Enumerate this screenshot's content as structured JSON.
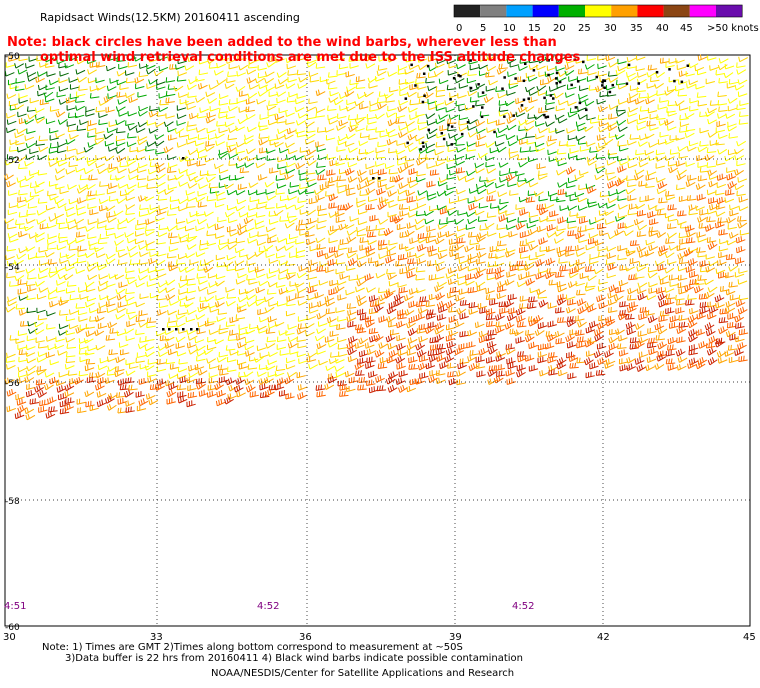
{
  "title": "Rapidsact Winds(12.5KM) 20160411 ascending",
  "note_line1": "Note: black circles have been added to the wind barbs, wherever less than",
  "note_line2": "optimal wind retrieval conditions are met due to the ISS altitude changes",
  "note_color": "#ff0000",
  "legend": {
    "labels": [
      "0",
      "5",
      "10",
      "15",
      "20",
      "25",
      "30",
      "35",
      "40",
      "45",
      ">50 knots"
    ],
    "colors": [
      "#222222",
      "#808080",
      "#00a0ff",
      "#0000ff",
      "#00b000",
      "#ffff00",
      "#ffa000",
      "#ff0000",
      "#8b4513",
      "#ff00ff",
      "#6a0dad"
    ]
  },
  "lat_labels": [
    "-50",
    "-52",
    "-54",
    "-56",
    "-58",
    "-60"
  ],
  "lon_labels": [
    "30",
    "33",
    "36",
    "39",
    "42",
    "45"
  ],
  "time_labels": [
    "4:51",
    "4:52",
    "4:52"
  ],
  "time_color": "#800080",
  "footer_line1": "Note: 1) Times are GMT 2)Times along bottom correspond to measurement at ~50S",
  "footer_line2": "3)Data buffer is 22 hrs from 20160411 4) Black wind barbs indicate possible contamination",
  "footer_line3": "NOAA/NESDIS/Center for Satellite Applications and Research",
  "barb_colors": {
    "calm": "#ffff00",
    "light": "#ffd700",
    "moderate": "#ffa500",
    "strong": "#ff6600",
    "very_strong": "#cc2200",
    "green": "#00aa00",
    "dark_green": "#006600",
    "contaminated": "#000000"
  }
}
